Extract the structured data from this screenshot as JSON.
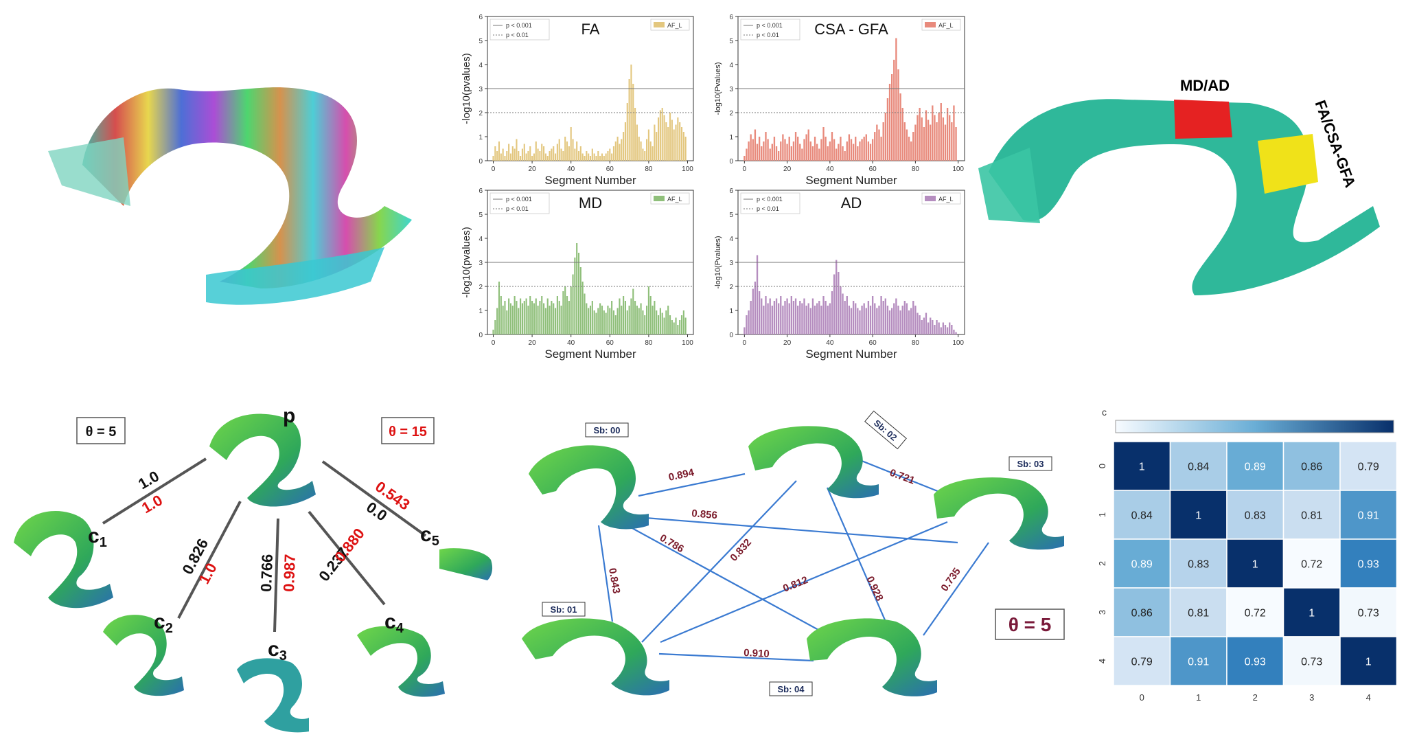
{
  "plots": {
    "xlabel": "Segment Number",
    "legend_p001": "p < 0.001",
    "legend_p01": "p < 0.01",
    "series_label": "AF_L",
    "xticks": [
      "0",
      "20",
      "40",
      "60",
      "80",
      "100"
    ],
    "yticks": [
      "0",
      "1",
      "2",
      "3",
      "4",
      "5",
      "6"
    ],
    "panels": [
      {
        "title": "FA",
        "ylabel": "-log10(pvalues)",
        "color": "#e3c77f",
        "values": [
          0.2,
          0.6,
          0.4,
          0.8,
          0.3,
          0.5,
          0.2,
          0.4,
          0.7,
          0.3,
          0.6,
          0.5,
          0.9,
          0.4,
          0.2,
          0.5,
          0.7,
          0.3,
          0.4,
          0.6,
          0.2,
          0.3,
          0.8,
          0.5,
          0.4,
          0.7,
          0.6,
          0.3,
          0.2,
          0.4,
          0.5,
          0.6,
          0.3,
          0.7,
          0.9,
          0.5,
          0.4,
          1.0,
          0.8,
          0.6,
          1.4,
          0.9,
          0.5,
          0.8,
          0.4,
          0.6,
          0.3,
          0.2,
          0.4,
          0.3,
          0.2,
          0.5,
          0.3,
          0.2,
          0.4,
          0.2,
          0.3,
          0.2,
          0.3,
          0.4,
          0.5,
          0.3,
          0.6,
          0.8,
          1.0,
          0.7,
          0.9,
          1.2,
          1.6,
          2.4,
          3.4,
          4.0,
          3.2,
          2.2,
          1.5,
          1.0,
          0.8,
          0.5,
          0.4,
          0.9,
          1.3,
          0.8,
          0.6,
          1.5,
          1.2,
          1.8,
          2.1,
          2.2,
          1.9,
          1.6,
          1.4,
          2.0,
          1.7,
          1.3,
          1.5,
          1.8,
          1.6,
          1.4,
          1.2,
          1.0
        ]
      },
      {
        "title": "CSA - GFA",
        "ylabel": "-log10(Pvalues)",
        "color": "#e88a7c",
        "values": [
          0.2,
          0.5,
          0.8,
          1.1,
          0.9,
          1.3,
          0.7,
          1.0,
          0.6,
          0.8,
          1.2,
          0.9,
          0.5,
          0.7,
          1.0,
          0.6,
          0.4,
          0.8,
          1.1,
          0.9,
          0.7,
          1.0,
          0.6,
          0.8,
          1.2,
          1.0,
          0.7,
          0.5,
          0.9,
          1.1,
          1.3,
          0.8,
          0.6,
          1.0,
          0.7,
          0.5,
          0.9,
          1.4,
          1.0,
          0.6,
          0.8,
          1.2,
          0.9,
          0.5,
          0.7,
          1.0,
          0.6,
          0.4,
          0.8,
          1.1,
          0.9,
          0.7,
          1.0,
          0.6,
          0.8,
          0.9,
          1.0,
          1.1,
          0.8,
          0.7,
          0.9,
          1.2,
          1.5,
          1.3,
          1.0,
          1.6,
          2.0,
          2.6,
          3.2,
          3.6,
          4.2,
          5.1,
          3.8,
          2.8,
          2.2,
          1.6,
          1.3,
          1.0,
          0.8,
          1.2,
          1.5,
          1.9,
          2.2,
          1.8,
          1.4,
          2.1,
          1.7,
          1.5,
          2.3,
          1.9,
          1.6,
          2.0,
          2.4,
          1.8,
          1.5,
          2.2,
          1.9,
          1.6,
          2.3,
          1.4
        ]
      },
      {
        "title": "MD",
        "ylabel": "-log10(pvalues)",
        "color": "#8fbf7a",
        "values": [
          0.2,
          0.6,
          1.1,
          2.2,
          1.6,
          1.2,
          1.4,
          1.0,
          1.5,
          1.3,
          1.2,
          1.6,
          1.4,
          1.1,
          1.5,
          1.3,
          1.4,
          1.5,
          1.2,
          1.6,
          1.4,
          1.3,
          1.5,
          1.2,
          1.4,
          1.6,
          1.3,
          1.1,
          1.5,
          1.2,
          1.4,
          1.3,
          1.1,
          1.6,
          1.4,
          1.2,
          1.8,
          2.0,
          1.6,
          1.4,
          2.0,
          2.5,
          3.2,
          3.8,
          3.4,
          2.8,
          2.2,
          1.7,
          1.3,
          1.1,
          1.2,
          1.4,
          1.0,
          0.9,
          1.1,
          1.3,
          1.2,
          1.0,
          0.9,
          1.2,
          1.1,
          1.4,
          1.0,
          0.8,
          1.1,
          1.5,
          1.2,
          1.6,
          1.4,
          1.0,
          1.2,
          1.5,
          1.9,
          1.4,
          1.2,
          1.1,
          1.3,
          1.0,
          0.8,
          1.2,
          2.0,
          1.6,
          1.2,
          1.4,
          1.0,
          0.8,
          1.1,
          0.9,
          0.7,
          1.0,
          1.2,
          0.8,
          0.6,
          0.5,
          0.7,
          0.4,
          0.6,
          0.8,
          1.0,
          0.7
        ]
      },
      {
        "title": "AD",
        "ylabel": "-log10(Pvalues)",
        "color": "#b58dbf",
        "values": [
          0.3,
          0.8,
          1.0,
          1.4,
          1.9,
          2.2,
          3.3,
          1.8,
          1.5,
          1.2,
          1.6,
          1.3,
          1.5,
          1.2,
          1.4,
          1.5,
          1.3,
          1.6,
          1.2,
          1.4,
          1.5,
          1.3,
          1.6,
          1.4,
          1.5,
          1.2,
          1.4,
          1.3,
          1.5,
          1.2,
          1.3,
          1.1,
          1.5,
          1.2,
          1.3,
          1.4,
          1.2,
          1.6,
          1.4,
          1.2,
          1.3,
          1.8,
          2.5,
          3.1,
          2.6,
          2.0,
          1.7,
          1.4,
          1.6,
          1.2,
          1.1,
          1.4,
          1.3,
          1.1,
          1.0,
          1.2,
          1.3,
          1.1,
          1.4,
          1.2,
          1.6,
          1.3,
          1.1,
          1.2,
          1.6,
          1.4,
          1.5,
          1.2,
          1.0,
          1.1,
          1.3,
          1.5,
          1.2,
          1.0,
          1.2,
          1.4,
          1.3,
          1.0,
          1.1,
          1.4,
          1.2,
          0.9,
          0.8,
          0.6,
          0.7,
          0.9,
          0.5,
          0.7,
          0.6,
          0.4,
          0.6,
          0.5,
          0.3,
          0.5,
          0.4,
          0.3,
          0.5,
          0.4,
          0.2,
          0.1
        ]
      }
    ]
  },
  "segmented_tract": {
    "label_top": "MD/AD",
    "label_side": "FA/CSA-GFA"
  },
  "tree": {
    "theta_left": "θ = 5",
    "theta_right": "θ = 15",
    "parent_label": "p",
    "children": [
      {
        "label": "c",
        "sub": "1",
        "black": "1.0",
        "red": "1.0"
      },
      {
        "label": "c",
        "sub": "2",
        "black": "0.826",
        "red": "1.0"
      },
      {
        "label": "c",
        "sub": "3",
        "black": "0.766",
        "red": "0.987"
      },
      {
        "label": "c",
        "sub": "4",
        "black": "0.237",
        "red": "0.880"
      },
      {
        "label": "c",
        "sub": "5",
        "black": "0.0",
        "red": "0.543"
      }
    ]
  },
  "graph": {
    "theta": "θ = 5",
    "nodes": [
      "Sb: 00",
      "Sb: 01",
      "Sb: 02",
      "Sb: 03",
      "Sb: 04"
    ],
    "edges": [
      {
        "label": "0.894"
      },
      {
        "label": "0.856"
      },
      {
        "label": "0.786"
      },
      {
        "label": "0.843"
      },
      {
        "label": "0.832"
      },
      {
        "label": "0.721"
      },
      {
        "label": "0.812"
      },
      {
        "label": "0.928"
      },
      {
        "label": "0.735"
      },
      {
        "label": "0.910"
      }
    ]
  },
  "heatmap": {
    "colorbar_label": "c",
    "xticks": [
      "0",
      "1",
      "2",
      "3",
      "4"
    ],
    "yticks": [
      "0",
      "1",
      "2",
      "3",
      "4"
    ],
    "values": [
      [
        "1",
        "0.84",
        "0.89",
        "0.86",
        "0.79"
      ],
      [
        "0.84",
        "1",
        "0.83",
        "0.81",
        "0.91"
      ],
      [
        "0.89",
        "0.83",
        "1",
        "0.72",
        "0.93"
      ],
      [
        "0.86",
        "0.81",
        "0.72",
        "1",
        "0.73"
      ],
      [
        "0.79",
        "0.91",
        "0.93",
        "0.73",
        "1"
      ]
    ]
  }
}
